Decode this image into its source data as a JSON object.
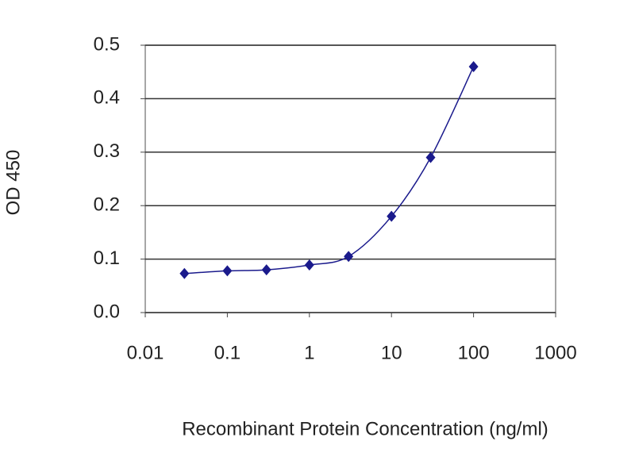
{
  "chart_data": {
    "type": "line",
    "xlabel": "Recombinant Protein Concentration (ng/ml)",
    "ylabel": "OD 450",
    "x": [
      0.03,
      0.1,
      0.3,
      1,
      3,
      10,
      30,
      100
    ],
    "series": [
      {
        "color": "#1a1a8c",
        "values": [
          0.073,
          0.078,
          0.08,
          0.089,
          0.105,
          0.18,
          0.29,
          0.46
        ]
      }
    ],
    "xscale": "log",
    "xlim": [
      0.01,
      1000
    ],
    "xticks": [
      0.01,
      0.1,
      1,
      10,
      100,
      1000
    ],
    "ylim": [
      0,
      0.5
    ],
    "yticks": [
      {
        "value": 0,
        "label": "0.0"
      },
      0.1,
      0.2,
      0.3,
      0.4,
      0.5
    ],
    "grid": true
  }
}
